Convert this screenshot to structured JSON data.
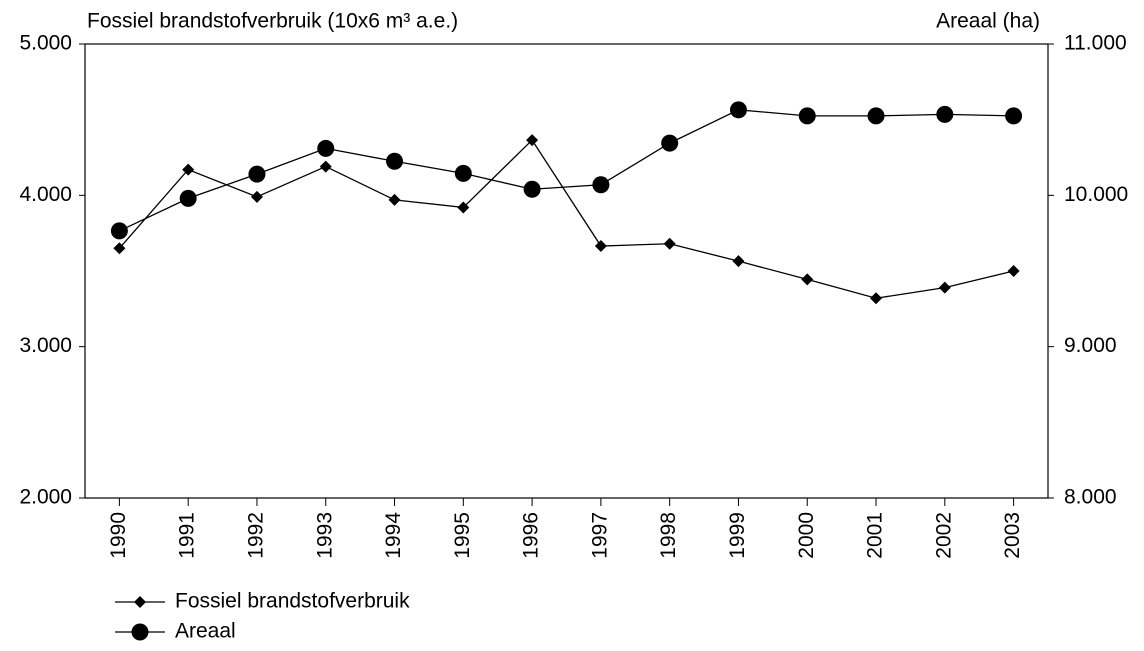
{
  "chart_data": {
    "type": "line",
    "y_label": "Fossiel brandstofverbruik (10x6 m³ a.e.)",
    "y2_label": "Areaal (ha)",
    "categories": [
      "1990",
      "1991",
      "1992",
      "1993",
      "1994",
      "1995",
      "1996",
      "1997",
      "1998",
      "1999",
      "2000",
      "2001",
      "2002",
      "2003"
    ],
    "series": [
      {
        "name": "Fossiel brandstofverbruik",
        "color": "#000000",
        "marker": "diamond",
        "values": [
          3650,
          4170,
          3990,
          4190,
          3970,
          3920,
          4365,
          3665,
          3680,
          3565,
          3445,
          3320,
          3390,
          3500
        ]
      },
      {
        "name": "Areaal",
        "color": "#000000",
        "marker": "circle",
        "axis": "y2",
        "values": [
          9765,
          9980,
          10140,
          10310,
          10225,
          10145,
          10040,
          10070,
          10345,
          10565,
          10525,
          10525,
          10535,
          10525
        ]
      }
    ],
    "ylim": [
      2000,
      5000
    ],
    "yticks": [
      {
        "value": 2000,
        "label": "2.000"
      },
      {
        "value": 3000,
        "label": "3.000"
      },
      {
        "value": 4000,
        "label": "4.000"
      },
      {
        "value": 5000,
        "label": "5.000"
      }
    ],
    "y2lim": [
      8000,
      11000
    ],
    "y2ticks": [
      {
        "value": 8000,
        "label": "8.000"
      },
      {
        "value": 9000,
        "label": "9.000"
      },
      {
        "value": 10000,
        "label": "10.000"
      },
      {
        "value": 11000,
        "label": "11.000"
      }
    ],
    "grid": false
  }
}
